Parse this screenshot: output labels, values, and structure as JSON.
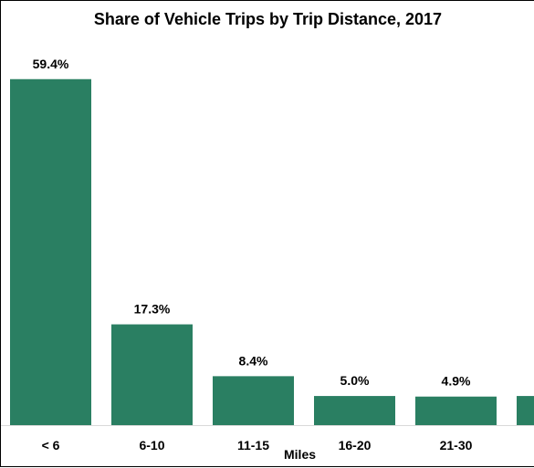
{
  "chart_data": {
    "type": "bar",
    "title": "Share of Vehicle Trips by Trip Distance, 2017",
    "xlabel": "Miles",
    "ylabel": "",
    "categories": [
      "< 6",
      "6-10",
      "11-15",
      "16-20",
      "21-30",
      ""
    ],
    "values": [
      59.4,
      17.3,
      8.4,
      5.0,
      4.9,
      5.0
    ],
    "data_labels": [
      "59.4%",
      "17.3%",
      "8.4%",
      "5.0%",
      "4.9%",
      ""
    ],
    "ylim": [
      0,
      65
    ],
    "grid": false,
    "legend": "none",
    "bar_color": "#2a7f62"
  }
}
